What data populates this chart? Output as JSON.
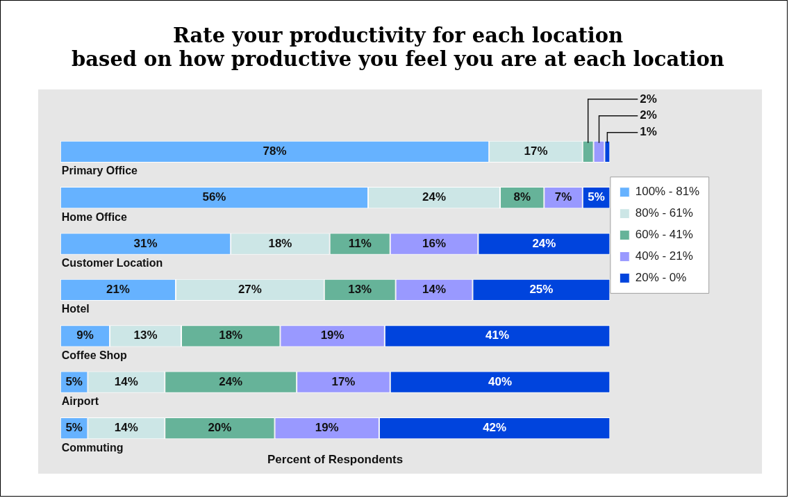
{
  "chart_data": {
    "type": "bar",
    "orientation": "horizontal",
    "stacked": true,
    "title": "Rate your productivity for each location\nbased on how productive you feel you are at each location",
    "xlabel": "Percent of Respondents",
    "categories": [
      "Primary Office",
      "Home Office",
      "Customer Location",
      "Hotel",
      "Coffee Shop",
      "Airport",
      "Commuting"
    ],
    "legend": "right",
    "grid": false,
    "tick_labels": false,
    "series": [
      {
        "name": "100% - 81%",
        "color": "#66b2ff",
        "values": [
          78,
          56,
          31,
          21,
          9,
          5,
          5
        ],
        "value_labels": [
          "78%",
          "56%",
          "31%",
          "21%",
          "9%",
          "5%",
          "5%"
        ]
      },
      {
        "name": "80% - 61%",
        "color": "#cce6e6",
        "values": [
          17,
          24,
          18,
          27,
          13,
          14,
          14
        ],
        "value_labels": [
          "17%",
          "24%",
          "18%",
          "27%",
          "13%",
          "14%",
          "14%"
        ]
      },
      {
        "name": "60% - 41%",
        "color": "#66b399",
        "values": [
          2,
          8,
          11,
          13,
          18,
          24,
          20
        ],
        "value_labels": [
          "2%",
          "8%",
          "11%",
          "13%",
          "18%",
          "24%",
          "20%"
        ]
      },
      {
        "name": "40% - 21%",
        "color": "#9999ff",
        "values": [
          2,
          7,
          16,
          14,
          19,
          17,
          19
        ],
        "value_labels": [
          "2%",
          "7%",
          "16%",
          "14%",
          "19%",
          "17%",
          "19%"
        ]
      },
      {
        "name": "20% - 0%",
        "color": "#0044dd",
        "values": [
          1,
          5,
          24,
          25,
          41,
          40,
          42
        ],
        "value_labels": [
          "1%",
          "5%",
          "24%",
          "25%",
          "41%",
          "40%",
          "42%"
        ]
      }
    ]
  }
}
